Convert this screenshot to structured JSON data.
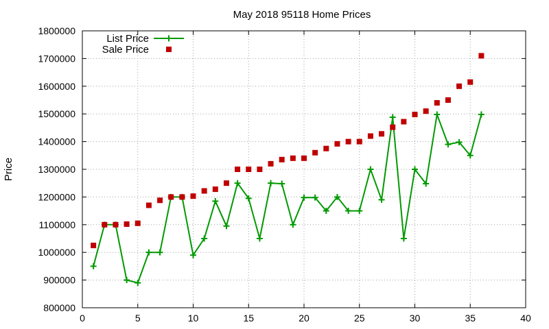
{
  "chart_data": {
    "type": "line",
    "title": "May 2018 95118 Home Prices",
    "xlabel": "",
    "ylabel": "Price",
    "xlim": [
      0,
      40
    ],
    "ylim": [
      800000,
      1800000
    ],
    "x_ticks": [
      0,
      5,
      10,
      15,
      20,
      25,
      30,
      35,
      40
    ],
    "y_ticks": [
      800000,
      900000,
      1000000,
      1100000,
      1200000,
      1300000,
      1400000,
      1500000,
      1600000,
      1700000,
      1800000
    ],
    "grid": true,
    "legend_position": "top-left",
    "series": [
      {
        "name": "List Price",
        "style": "line-with-plus-markers",
        "color": "#009900",
        "x": [
          1,
          2,
          3,
          4,
          5,
          6,
          7,
          8,
          9,
          10,
          11,
          12,
          13,
          14,
          15,
          16,
          17,
          18,
          19,
          20,
          21,
          22,
          23,
          24,
          25,
          26,
          27,
          28,
          29,
          30,
          31,
          32,
          33,
          34,
          35,
          36
        ],
        "values": [
          950000,
          1100000,
          1100000,
          900000,
          890000,
          1000000,
          1000000,
          1200000,
          1200000,
          990000,
          1050000,
          1185000,
          1095000,
          1250000,
          1195000,
          1050000,
          1250000,
          1248000,
          1100000,
          1198000,
          1198000,
          1150000,
          1200000,
          1150000,
          1150000,
          1300000,
          1190000,
          1488000,
          1050000,
          1300000,
          1248000,
          1498000,
          1390000,
          1398000,
          1350000,
          1498000
        ]
      },
      {
        "name": "Sale Price",
        "style": "square-markers",
        "color": "#c00000",
        "x": [
          1,
          2,
          3,
          4,
          5,
          6,
          7,
          8,
          9,
          10,
          11,
          12,
          13,
          14,
          15,
          16,
          17,
          18,
          19,
          20,
          21,
          22,
          23,
          24,
          25,
          26,
          27,
          28,
          29,
          30,
          31,
          32,
          33,
          34,
          35,
          36
        ],
        "values": [
          1025000,
          1100000,
          1100000,
          1102000,
          1105000,
          1170000,
          1188000,
          1200000,
          1200000,
          1203000,
          1222000,
          1228000,
          1250000,
          1300000,
          1300000,
          1300000,
          1320000,
          1335000,
          1340000,
          1340000,
          1360000,
          1375000,
          1392000,
          1400000,
          1400000,
          1420000,
          1428000,
          1452000,
          1472000,
          1498000,
          1510000,
          1540000,
          1550000,
          1600000,
          1615000,
          1710000
        ]
      }
    ]
  }
}
